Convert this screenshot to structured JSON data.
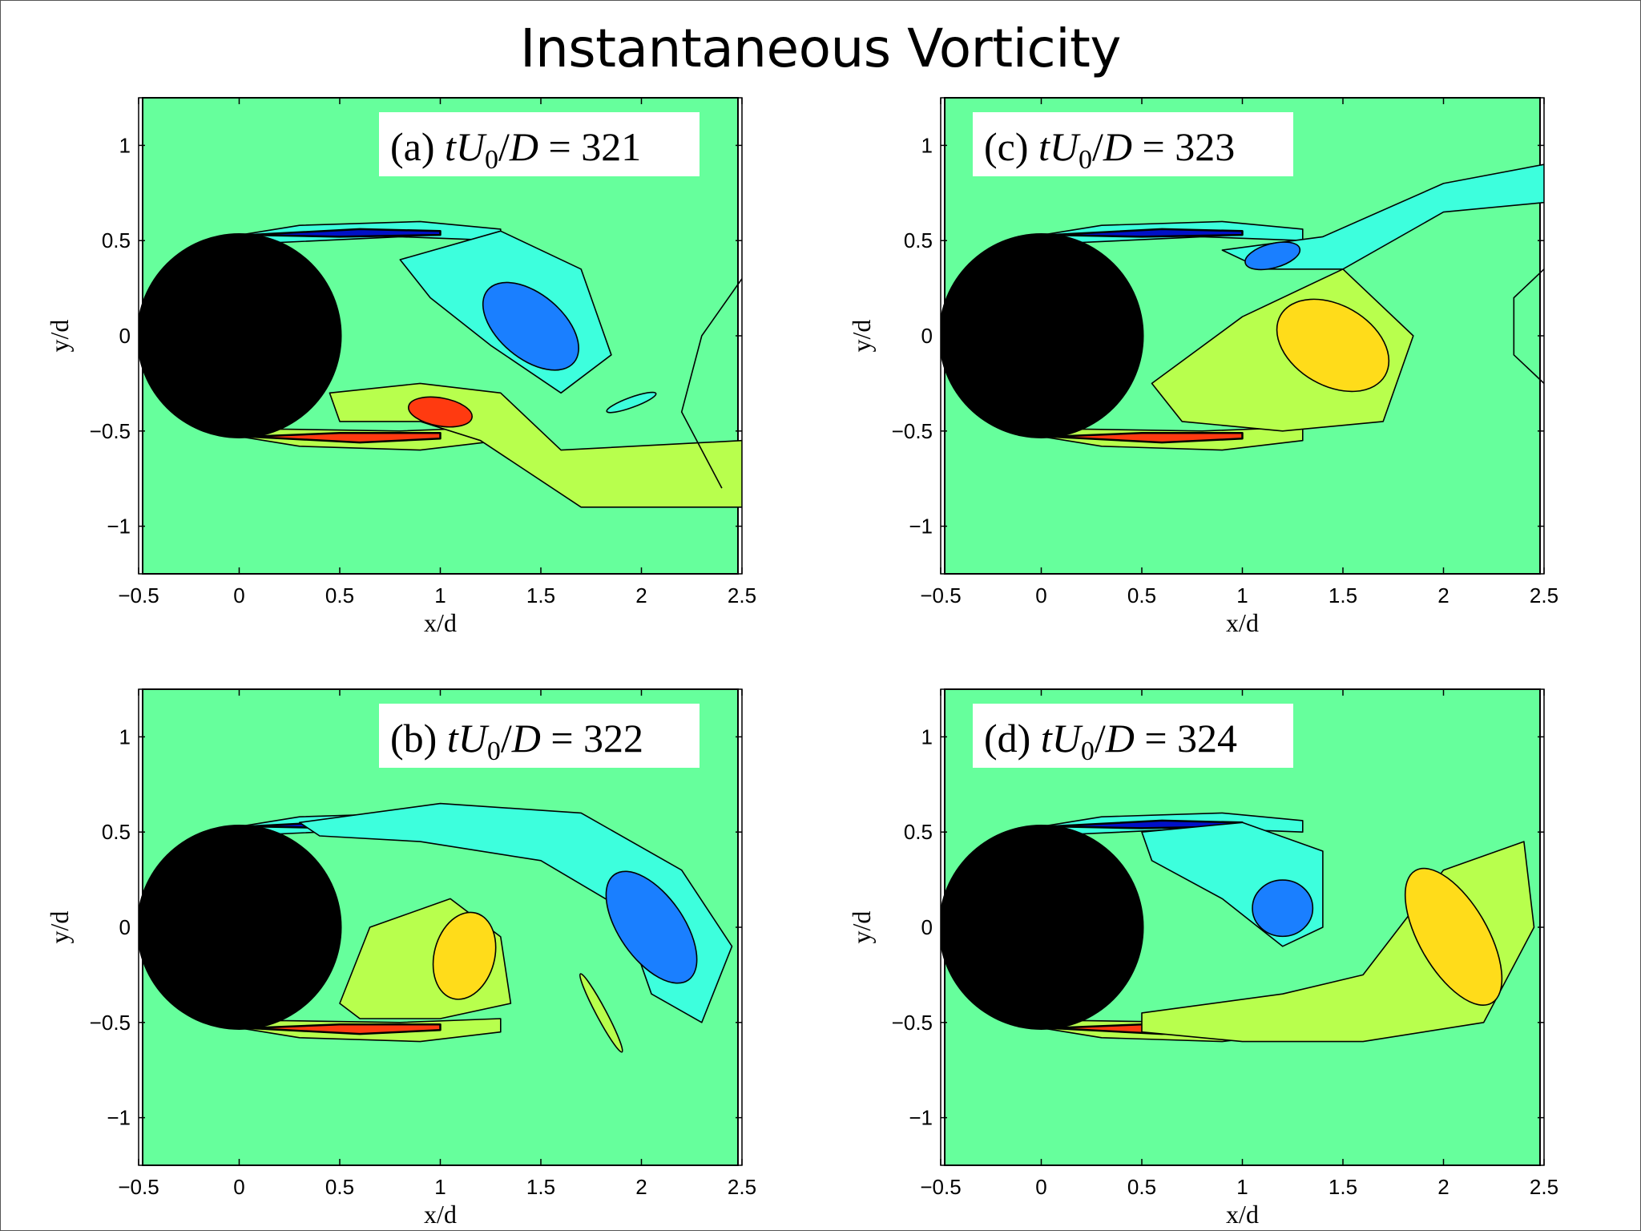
{
  "title": "Instantaneous Vorticity",
  "colors": {
    "background_field": "#66ff9c",
    "cylinder": "#000000",
    "negative_strong": "#0010c8",
    "negative_mid": "#1a7fff",
    "negative_weak": "#3dffdd",
    "positive_weak": "#b8ff4d",
    "positive_mid": "#ffdc1a",
    "positive_strong": "#ff3a10",
    "contour_line": "#000000"
  },
  "chart_data": [
    {
      "type": "heatmap",
      "panel": "a",
      "label_prefix": "(a) ",
      "label_math": "tU0/D = 321",
      "label_value": "321",
      "xlabel": "x/d",
      "ylabel": "y/d",
      "xlim": [
        -0.5,
        2.5
      ],
      "ylim": [
        -1.25,
        1.25
      ],
      "xticks": [
        "−0.5",
        "0",
        "0.5",
        "1",
        "1.5",
        "2",
        "2.5"
      ],
      "yticks": [
        "−1",
        "−0.5",
        "0",
        "0.5",
        "1"
      ],
      "wake_phase": "upper_shed"
    },
    {
      "type": "heatmap",
      "panel": "c",
      "label_prefix": "(c) ",
      "label_math": "tU0/D = 323",
      "label_value": "323",
      "xlabel": "x/d",
      "ylabel": "y/d",
      "xlim": [
        -0.5,
        2.5
      ],
      "ylim": [
        -1.25,
        1.25
      ],
      "xticks": [
        "−0.5",
        "0",
        "0.5",
        "1",
        "1.5",
        "2",
        "2.5"
      ],
      "yticks": [
        "−1",
        "−0.5",
        "0",
        "0.5",
        "1"
      ],
      "wake_phase": "lower_roll"
    },
    {
      "type": "heatmap",
      "panel": "b",
      "label_prefix": "(b) ",
      "label_math": "tU0/D = 322",
      "label_value": "322",
      "xlabel": "x/d",
      "ylabel": "y/d",
      "xlim": [
        -0.5,
        2.5
      ],
      "ylim": [
        -1.25,
        1.25
      ],
      "xticks": [
        "−0.5",
        "0",
        "0.5",
        "1",
        "1.5",
        "2",
        "2.5"
      ],
      "yticks": [
        "−1",
        "−0.5",
        "0",
        "0.5",
        "1"
      ],
      "wake_phase": "upper_long"
    },
    {
      "type": "heatmap",
      "panel": "d",
      "label_prefix": "(d) ",
      "label_math": "tU0/D = 324",
      "label_value": "324",
      "xlabel": "x/d",
      "ylabel": "y/d",
      "xlim": [
        -0.5,
        2.5
      ],
      "ylim": [
        -1.25,
        1.25
      ],
      "xticks": [
        "−0.5",
        "0",
        "0.5",
        "1",
        "1.5",
        "2",
        "2.5"
      ],
      "yticks": [
        "−1",
        "−0.5",
        "0",
        "0.5",
        "1"
      ],
      "wake_phase": "lower_shed"
    }
  ]
}
